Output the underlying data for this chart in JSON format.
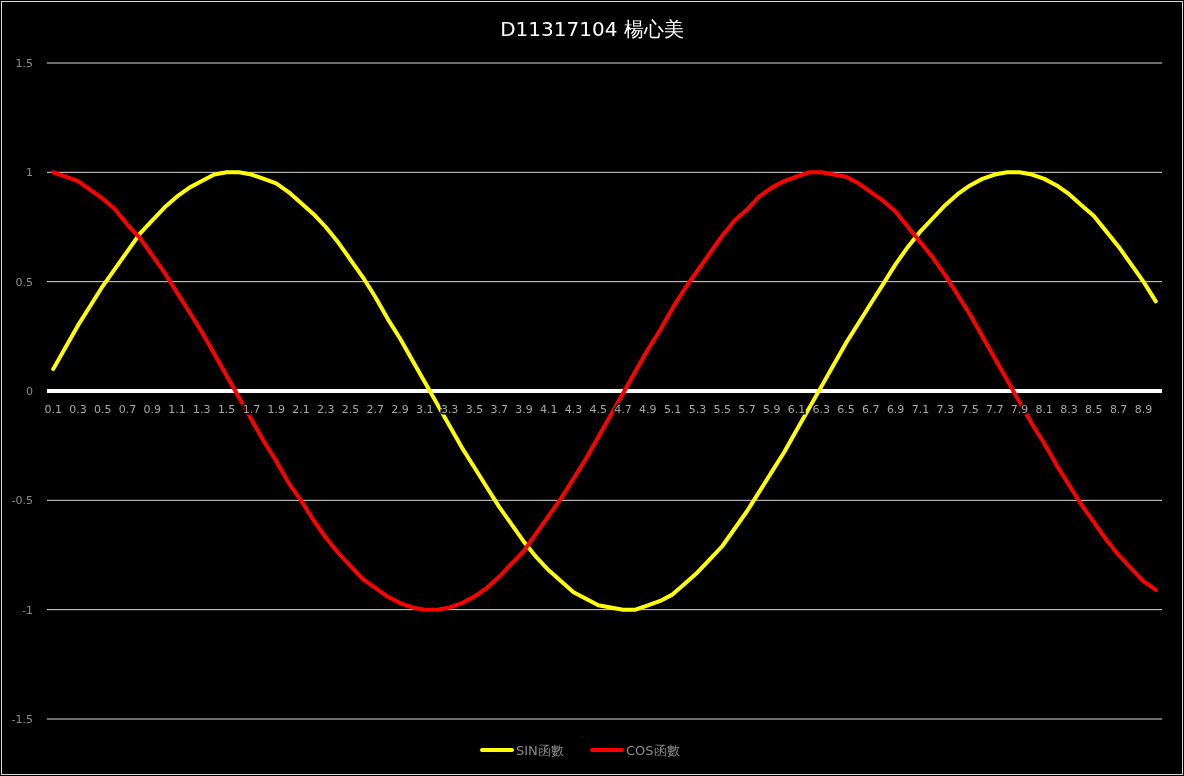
{
  "chart_data": {
    "type": "line",
    "title": "D11317104 楊心美",
    "categories": [
      "0.1",
      null,
      "0.3",
      null,
      "0.5",
      null,
      "0.7",
      null,
      "0.9",
      null,
      "1.1",
      null,
      "1.3",
      null,
      "1.5",
      null,
      "1.7",
      null,
      "1.9",
      null,
      "2.1",
      null,
      "2.3",
      null,
      "2.5",
      null,
      "2.7",
      null,
      "2.9",
      null,
      "3.1",
      null,
      "3.3",
      null,
      "3.5",
      null,
      "3.7",
      null,
      "3.9",
      null,
      "4.1",
      null,
      "4.3",
      null,
      "4.5",
      null,
      "4.7",
      null,
      "4.9",
      null,
      "5.1",
      null,
      "5.3",
      null,
      "5.5",
      null,
      "5.7",
      null,
      "5.9",
      null,
      "6.1",
      null,
      "6.3",
      null,
      "6.5",
      null,
      "6.7",
      null,
      "6.9",
      null,
      "7.1",
      null,
      "7.3",
      null,
      "7.5",
      null,
      "7.7",
      null,
      "7.9",
      null,
      "8.1",
      null,
      "8.3",
      null,
      "8.5",
      null,
      "8.7",
      null,
      "8.9",
      null
    ],
    "series": [
      {
        "name": "SIN函數",
        "color": "#ffff00",
        "values": [
          0.1,
          0.2,
          0.3,
          0.39,
          0.48,
          0.56,
          0.64,
          0.72,
          0.78,
          0.84,
          0.89,
          0.93,
          0.96,
          0.99,
          1.0,
          1.0,
          0.99,
          0.97,
          0.95,
          0.91,
          0.86,
          0.81,
          0.75,
          0.68,
          0.6,
          0.52,
          0.43,
          0.33,
          0.24,
          0.14,
          0.04,
          -0.06,
          -0.16,
          -0.26,
          -0.35,
          -0.44,
          -0.53,
          -0.61,
          -0.69,
          -0.76,
          -0.82,
          -0.87,
          -0.92,
          -0.95,
          -0.98,
          -0.99,
          -1.0,
          -1.0,
          -0.98,
          -0.96,
          -0.93,
          -0.88,
          -0.83,
          -0.77,
          -0.71,
          -0.63,
          -0.55,
          -0.46,
          -0.37,
          -0.28,
          -0.18,
          -0.08,
          0.02,
          0.12,
          0.22,
          0.31,
          0.4,
          0.49,
          0.58,
          0.66,
          0.73,
          0.79,
          0.85,
          0.9,
          0.94,
          0.97,
          0.99,
          1.0,
          1.0,
          0.99,
          0.97,
          0.94,
          0.9,
          0.85,
          0.8,
          0.73,
          0.66,
          0.58,
          0.5,
          0.41
        ]
      },
      {
        "name": "COS函數",
        "color": "#ff0000",
        "values": [
          1.0,
          0.98,
          0.96,
          0.92,
          0.88,
          0.83,
          0.76,
          0.7,
          0.62,
          0.54,
          0.45,
          0.36,
          0.27,
          0.17,
          0.07,
          -0.03,
          -0.13,
          -0.23,
          -0.32,
          -0.42,
          -0.5,
          -0.59,
          -0.67,
          -0.74,
          -0.8,
          -0.86,
          -0.9,
          -0.94,
          -0.97,
          -0.99,
          -1.0,
          -1.0,
          -0.99,
          -0.97,
          -0.94,
          -0.9,
          -0.85,
          -0.79,
          -0.73,
          -0.65,
          -0.57,
          -0.49,
          -0.4,
          -0.31,
          -0.21,
          -0.11,
          -0.01,
          0.09,
          0.19,
          0.28,
          0.38,
          0.47,
          0.55,
          0.63,
          0.71,
          0.78,
          0.83,
          0.89,
          0.93,
          0.96,
          0.98,
          1.0,
          1.0,
          0.99,
          0.98,
          0.95,
          0.91,
          0.87,
          0.82,
          0.75,
          0.68,
          0.61,
          0.53,
          0.44,
          0.35,
          0.25,
          0.15,
          0.05,
          -0.05,
          -0.15,
          -0.24,
          -0.34,
          -0.43,
          -0.52,
          -0.6,
          -0.68,
          -0.75,
          -0.81,
          -0.87,
          -0.91
        ]
      }
    ],
    "ylim": [
      -1.5,
      1.5
    ],
    "yticks": [
      -1.5,
      -1,
      -0.5,
      0,
      0.5,
      1,
      1.5
    ],
    "grid": "y",
    "legend": "bottom"
  }
}
